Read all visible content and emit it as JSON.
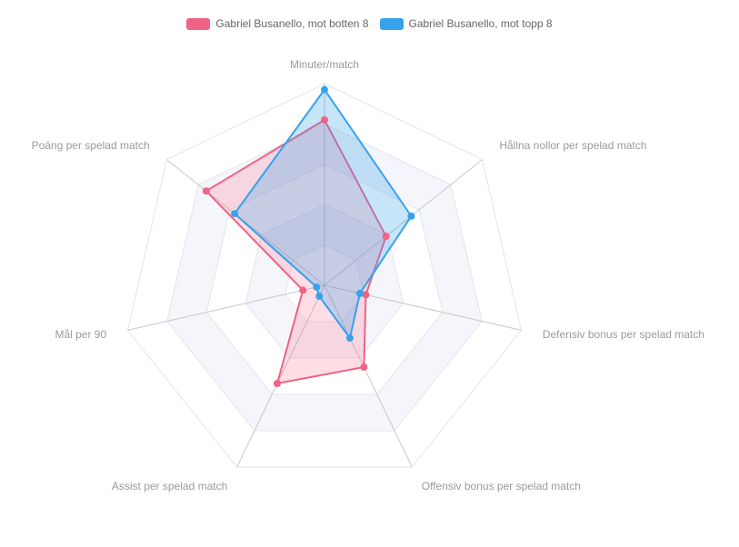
{
  "chart_data": {
    "type": "radar",
    "axes": [
      "Minuter/match",
      "Hållna nollor per spelad match",
      "Defensiv bonus per spelad match",
      "Offensiv bonus per spelad match",
      "Assist per spelad match",
      "Mål per 90",
      "Poäng per spelad match"
    ],
    "r_range": [
      0,
      1
    ],
    "ring_count": 5,
    "grid": true,
    "legend_position": "top",
    "series": [
      {
        "name": "Gabriel Busanello, mot botten 8",
        "color": "#ef6384",
        "fill": "rgba(255,99,132,0.22)",
        "values": [
          0.82,
          0.39,
          0.21,
          0.45,
          0.54,
          0.11,
          0.75
        ]
      },
      {
        "name": "Gabriel Busanello, mot topp 8",
        "color": "#36a2eb",
        "fill": "rgba(54,162,235,0.28)",
        "values": [
          0.97,
          0.55,
          0.18,
          0.29,
          0.06,
          0.04,
          0.57
        ]
      }
    ]
  }
}
